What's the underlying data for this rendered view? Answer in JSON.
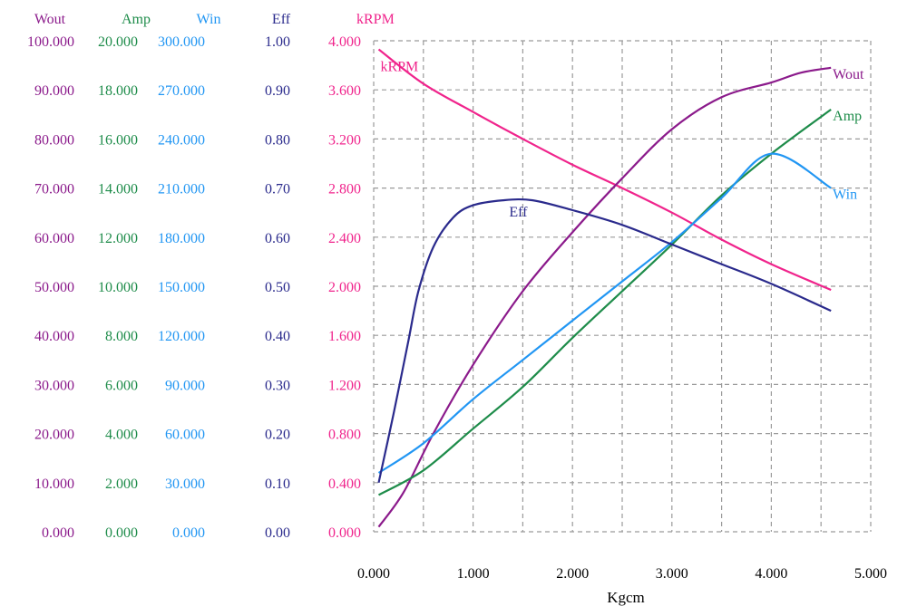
{
  "chart_data": {
    "type": "line",
    "xlabel": "Kgcm",
    "x_ticks": [
      "0.000",
      "1.000",
      "2.000",
      "3.000",
      "4.000",
      "5.000"
    ],
    "xlim": [
      0,
      5
    ],
    "grid": true,
    "axes": [
      {
        "name": "Wout",
        "color": "#8b1a8b",
        "range": [
          0,
          100
        ],
        "ticks": [
          "0.000",
          "10.000",
          "20.000",
          "30.000",
          "40.000",
          "50.000",
          "60.000",
          "70.000",
          "80.000",
          "90.000",
          "100.000"
        ]
      },
      {
        "name": "Amp",
        "color": "#1e8c4a",
        "range": [
          0,
          20
        ],
        "ticks": [
          "0.000",
          "2.000",
          "4.000",
          "6.000",
          "8.000",
          "10.000",
          "12.000",
          "14.000",
          "16.000",
          "18.000",
          "20.000"
        ]
      },
      {
        "name": "Win",
        "color": "#2196f3",
        "range": [
          0,
          300
        ],
        "ticks": [
          "0.000",
          "30.000",
          "60.000",
          "90.000",
          "120.000",
          "150.000",
          "180.000",
          "210.000",
          "240.000",
          "270.000",
          "300.000"
        ]
      },
      {
        "name": "Eff",
        "color": "#2a2a8c",
        "range": [
          0,
          1
        ],
        "ticks": [
          "0.00",
          "0.10",
          "0.20",
          "0.30",
          "0.40",
          "0.50",
          "0.60",
          "0.70",
          "0.80",
          "0.90",
          "1.00"
        ]
      },
      {
        "name": "kRPM",
        "color": "#f0248c",
        "range": [
          0,
          4
        ],
        "ticks": [
          "0.000",
          "0.400",
          "0.800",
          "1.200",
          "1.600",
          "2.000",
          "2.400",
          "2.800",
          "3.200",
          "3.600",
          "4.000"
        ]
      }
    ],
    "series": [
      {
        "name": "kRPM",
        "axis": 4,
        "color": "#f0248c",
        "label": "kRPM",
        "label_pos": "start",
        "points": [
          [
            0.05,
            3.93
          ],
          [
            0.5,
            3.65
          ],
          [
            1.0,
            3.42
          ],
          [
            1.5,
            3.2
          ],
          [
            2.0,
            2.99
          ],
          [
            2.5,
            2.8
          ],
          [
            3.0,
            2.6
          ],
          [
            3.5,
            2.38
          ],
          [
            4.0,
            2.18
          ],
          [
            4.6,
            1.97
          ]
        ]
      },
      {
        "name": "Wout",
        "axis": 0,
        "color": "#8b1a8b",
        "label": "Wout",
        "label_pos": "end",
        "points": [
          [
            0.05,
            1
          ],
          [
            0.3,
            8
          ],
          [
            0.6,
            20
          ],
          [
            1.0,
            34
          ],
          [
            1.5,
            49
          ],
          [
            2.0,
            61
          ],
          [
            2.5,
            72
          ],
          [
            3.0,
            82
          ],
          [
            3.5,
            88.5
          ],
          [
            4.0,
            91.5
          ],
          [
            4.3,
            93.5
          ],
          [
            4.6,
            94.5
          ]
        ]
      },
      {
        "name": "Amp",
        "axis": 1,
        "color": "#1e8c4a",
        "label": "Amp",
        "label_pos": "end",
        "points": [
          [
            0.05,
            1.5
          ],
          [
            0.5,
            2.5
          ],
          [
            1.0,
            4.2
          ],
          [
            1.5,
            5.9
          ],
          [
            2.0,
            7.9
          ],
          [
            2.5,
            9.8
          ],
          [
            3.0,
            11.7
          ],
          [
            3.5,
            13.7
          ],
          [
            4.0,
            15.4
          ],
          [
            4.6,
            17.2
          ]
        ]
      },
      {
        "name": "Win",
        "axis": 2,
        "color": "#2196f3",
        "label": "Win",
        "label_pos": "end",
        "points": [
          [
            0.05,
            36
          ],
          [
            0.5,
            54
          ],
          [
            1.0,
            81
          ],
          [
            1.5,
            105
          ],
          [
            2.0,
            129
          ],
          [
            2.5,
            153
          ],
          [
            3.0,
            177
          ],
          [
            3.5,
            204
          ],
          [
            4.0,
            231
          ],
          [
            4.6,
            210
          ]
        ]
      },
      {
        "name": "Eff",
        "axis": 3,
        "color": "#2a2a8c",
        "label": "Eff",
        "label_pos": "mid",
        "points": [
          [
            0.05,
            0.1
          ],
          [
            0.2,
            0.24
          ],
          [
            0.35,
            0.39
          ],
          [
            0.45,
            0.49
          ],
          [
            0.6,
            0.58
          ],
          [
            0.8,
            0.64
          ],
          [
            1.0,
            0.665
          ],
          [
            1.3,
            0.675
          ],
          [
            1.6,
            0.675
          ],
          [
            2.0,
            0.655
          ],
          [
            2.5,
            0.625
          ],
          [
            3.0,
            0.585
          ],
          [
            3.5,
            0.545
          ],
          [
            4.0,
            0.505
          ],
          [
            4.6,
            0.45
          ]
        ]
      }
    ]
  }
}
